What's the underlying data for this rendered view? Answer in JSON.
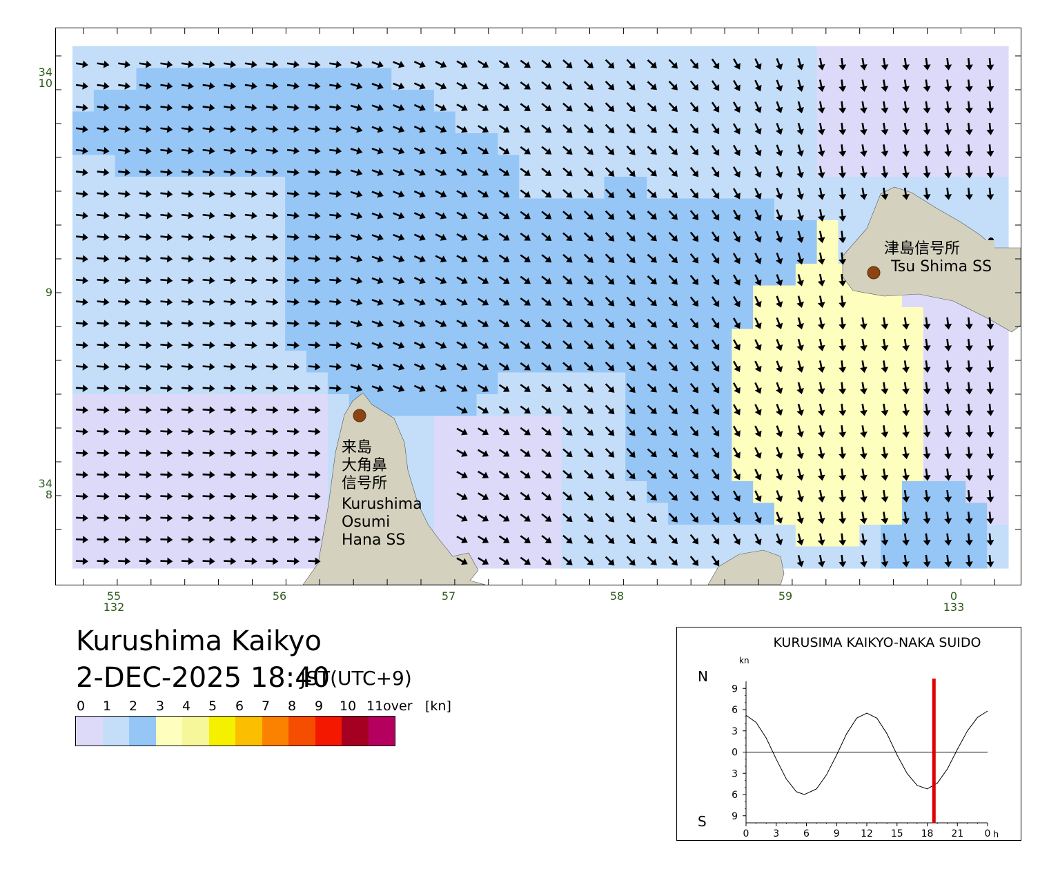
{
  "map": {
    "lat_labels": [
      {
        "deg": "34",
        "min": "10"
      },
      {
        "deg": "",
        "min": "9"
      },
      {
        "deg": "34",
        "min": "8"
      }
    ],
    "lon_labels": [
      {
        "min": "55",
        "deg": "132"
      },
      {
        "min": "56",
        "deg": ""
      },
      {
        "min": "57",
        "deg": ""
      },
      {
        "min": "58",
        "deg": ""
      },
      {
        "min": "59",
        "deg": ""
      },
      {
        "min": "0",
        "deg": "133"
      }
    ],
    "stations": [
      {
        "name_jp": "津島信号所",
        "name_en": "Tsu Shima SS"
      },
      {
        "name_jp_lines": [
          "来島",
          "大角鼻",
          "信号所"
        ],
        "name_en_lines": [
          "Kurushima",
          "Osumi",
          "Hana SS"
        ]
      }
    ],
    "colors": {
      "land": "#d4d2be",
      "station_marker": "#8b4513",
      "arrow": "#000000",
      "axis_label": "#2e5b1e"
    }
  },
  "title": "Kurushima Kaikyo",
  "datetime": "2-DEC-2025 18:40",
  "timezone": "JST(UTC+9)",
  "legend": {
    "labels": [
      "0",
      "1",
      "2",
      "3",
      "4",
      "5",
      "6",
      "7",
      "8",
      "9",
      "10",
      "11over",
      "[kn]"
    ],
    "colors": [
      "#dcdaf8",
      "#c4defa",
      "#96c6f6",
      "#fefebe",
      "#f6f69a",
      "#f5f000",
      "#fbbe00",
      "#fb8200",
      "#f64e00",
      "#f41800",
      "#a50021",
      "#b60060"
    ]
  },
  "tide_chart": {
    "title": "KURUSIMA KAIKYO-NAKA SUIDO",
    "unit": "kn",
    "north_label": "N",
    "south_label": "S",
    "y_tick_labels": [
      "9",
      "6",
      "3",
      "0",
      "3",
      "6",
      "9"
    ],
    "x_tick_labels": [
      "0",
      "3",
      "6",
      "9",
      "12",
      "15",
      "18",
      "21",
      "0"
    ],
    "x_unit": "h",
    "marker_color": "#e00000"
  },
  "chart_data": {
    "type": "line",
    "title": "KURUSIMA KAIKYO-NAKA SUIDO",
    "ylabel": "kn",
    "xlabel": "h",
    "x": [
      0,
      1,
      2,
      3,
      4,
      5,
      5.8,
      7,
      8,
      9,
      10,
      11,
      12,
      13,
      14,
      15,
      16,
      17,
      18,
      19,
      20,
      21,
      22,
      23,
      24
    ],
    "series": [
      {
        "values": [
          5.2,
          4.2,
          2.0,
          -1.0,
          -3.8,
          -5.6,
          -6.0,
          -5.2,
          -3.2,
          -0.4,
          2.6,
          4.8,
          5.5,
          4.8,
          2.6,
          -0.4,
          -3.0,
          -4.7,
          -5.2,
          -4.4,
          -2.4,
          0.4,
          3.0,
          4.9,
          5.8
        ]
      }
    ],
    "ylim": [
      -10,
      10
    ],
    "xlim": [
      0,
      24
    ],
    "current_time_h": 18.67
  }
}
